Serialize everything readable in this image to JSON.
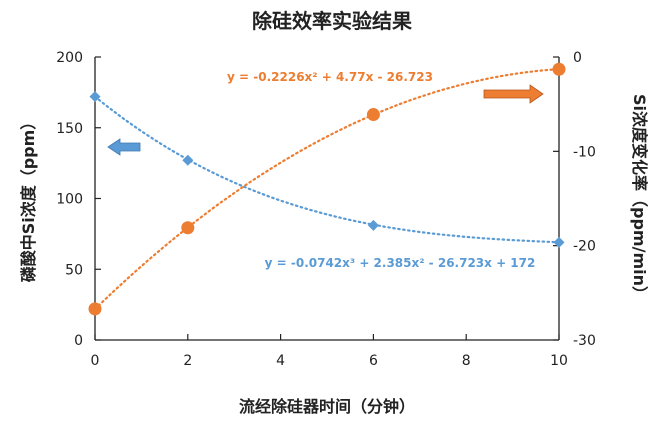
{
  "chart_data": {
    "type": "scatter",
    "title": "除硅效率实验结果",
    "xlabel": "流经除硅器时间（分钟）",
    "ylabel_left": "磷酸中Si浓度（ppm）",
    "ylabel_right": "Si浓度变化率（ppm/min）",
    "x_ticks": [
      "0",
      "2",
      "4",
      "6",
      "8",
      "10"
    ],
    "xlim": [
      0,
      10
    ],
    "yleft_ticks": [
      "0",
      "50",
      "100",
      "150",
      "200"
    ],
    "ylim_left": [
      0,
      200
    ],
    "yright_ticks": [
      "0",
      "-10",
      "-20",
      "-30"
    ],
    "ylim_right": [
      -30,
      0
    ],
    "grid": false,
    "series": [
      {
        "axis": "left",
        "marker": "diamond",
        "color": "#5B9BD5",
        "x": [
          0,
          2,
          6,
          10
        ],
        "y": [
          172,
          127,
          81,
          69
        ],
        "trendline_coeffs": [
          172,
          -26.723,
          2.385,
          -0.0742
        ],
        "trendline_equation": "y = -0.0742x³ + 2.385x² - 26.723x + 172"
      },
      {
        "axis": "right",
        "marker": "circle",
        "color": "#ED7D31",
        "x": [
          0,
          2,
          6,
          10
        ],
        "y": [
          -26.7,
          -18.1,
          -6.1,
          -1.3
        ],
        "trendline_coeffs": [
          -26.723,
          4.77,
          -0.2226
        ],
        "trendline_equation": "y = -0.2226x² + 4.77x - 26.723"
      }
    ],
    "annotations": [
      {
        "kind": "arrow",
        "direction": "left",
        "color": "#5B9BD5",
        "meaning": "left-axis series"
      },
      {
        "kind": "arrow",
        "direction": "right",
        "color": "#ED7D31",
        "meaning": "right-axis series"
      }
    ]
  }
}
